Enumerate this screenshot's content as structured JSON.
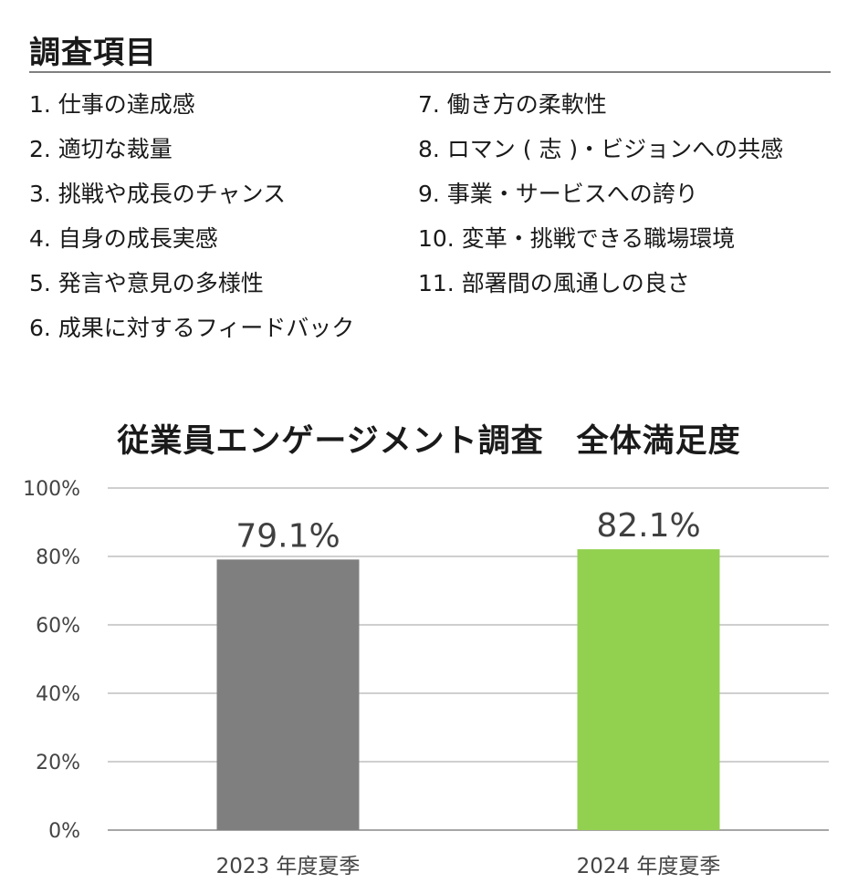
{
  "survey_items": {
    "title": "調査項目",
    "left_column": [
      "1. 仕事の達成感",
      "2. 適切な裁量",
      "3. 挑戦や成長のチャンス",
      "4. 自身の成長実感",
      "5. 発言や意見の多様性",
      "6. 成果に対するフィードバック"
    ],
    "right_column": [
      "7. 働き方の柔軟性",
      "8. ロマン ( 志 )・ビジョンへの共感",
      "9. 事業・サービスへの誇り",
      "10. 変革・挑戦できる職場環境",
      "11. 部署間の風通しの良さ"
    ]
  },
  "chart_data": {
    "type": "bar",
    "title": "従業員エンゲージメント調査　全体満足度",
    "xlabel": "",
    "ylabel": "",
    "categories": [
      "2023 年度夏季",
      "2024 年度夏季"
    ],
    "values": [
      79.1,
      82.1
    ],
    "data_labels": [
      "79.1%",
      "82.1%"
    ],
    "bar_colors": [
      "#7f7f7f",
      "#92d050"
    ],
    "ylim": [
      0,
      100
    ],
    "yticks": [
      0,
      20,
      40,
      60,
      80,
      100
    ],
    "ytick_labels": [
      "0%",
      "20%",
      "40%",
      "60%",
      "80%",
      "100%"
    ],
    "grid": true,
    "gridline_color": "#bfbfbf",
    "legend": "none"
  }
}
